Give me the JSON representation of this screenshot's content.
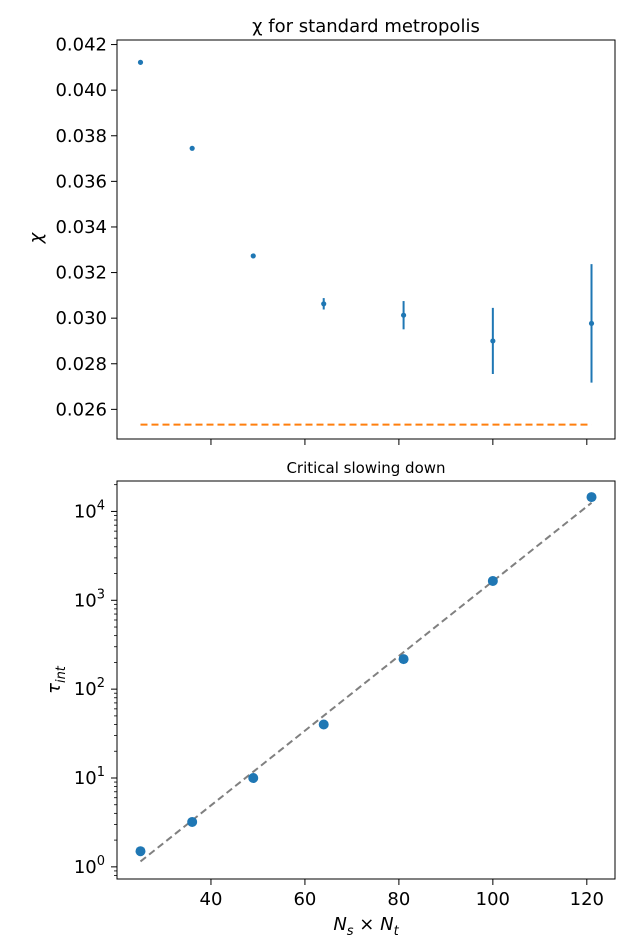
{
  "chart_data": [
    {
      "type": "scatter",
      "title": "χ for standard metropolis",
      "xlabel": "",
      "ylabel": "χ",
      "xlim": [
        20,
        126
      ],
      "ylim": [
        0.0247,
        0.0422
      ],
      "x_ticks": [
        40,
        60,
        80,
        100,
        120
      ],
      "y_ticks": [
        0.026,
        0.028,
        0.03,
        0.032,
        0.034,
        0.036,
        0.038,
        0.04,
        0.042
      ],
      "y_tick_labels": [
        "0.026",
        "0.028",
        "0.030",
        "0.032",
        "0.034",
        "0.036",
        "0.038",
        "0.040",
        "0.042"
      ],
      "series": [
        {
          "color": "#1f77b4",
          "x": [
            25,
            36,
            49,
            64,
            81,
            100,
            121
          ],
          "y": [
            0.04122,
            0.03745,
            0.03273,
            0.03063,
            0.03013,
            0.029,
            0.02977
          ],
          "yerr": [
            3e-05,
            4e-05,
            6e-05,
            0.00025,
            0.00062,
            0.00145,
            0.0026
          ]
        }
      ],
      "reference_line": {
        "color": "#ff7f0e",
        "style": "dashed",
        "y": 0.02533,
        "x_range": [
          25,
          121
        ]
      },
      "grid": false,
      "legend": "none"
    },
    {
      "type": "scatter",
      "title": "Critical slowing down",
      "xlabel": "N_s × N_t",
      "ylabel": "τ_int",
      "y_scale": "log",
      "xlim": [
        20,
        126
      ],
      "ylim": [
        0.73,
        22000
      ],
      "x_ticks": [
        40,
        60,
        80,
        100,
        120
      ],
      "x_tick_labels": [
        "40",
        "60",
        "80",
        "100",
        "120"
      ],
      "y_ticks": [
        1,
        10,
        100,
        1000,
        10000
      ],
      "y_tick_exponents": [
        "0",
        "1",
        "2",
        "3",
        "4"
      ],
      "series": [
        {
          "color": "#1f77b4",
          "x": [
            25,
            36,
            49,
            64,
            81,
            100,
            121
          ],
          "y": [
            1.5,
            3.2,
            10,
            40,
            218,
            1650,
            14500
          ]
        }
      ],
      "fit_line": {
        "color": "#808080",
        "style": "dashed",
        "x": [
          25,
          121
        ],
        "y": [
          1.15,
          12500
        ]
      },
      "grid": false,
      "legend": "none"
    }
  ]
}
